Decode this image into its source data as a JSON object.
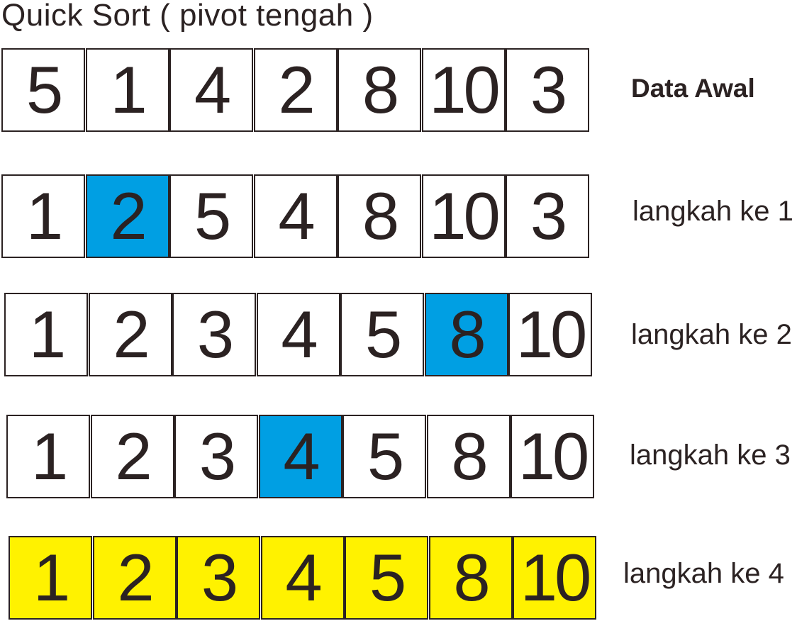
{
  "title": "Quick Sort ( pivot tengah )",
  "colors": {
    "pivot": "#009fe3",
    "sorted": "#fff200",
    "border": "#2b2222"
  },
  "rows": [
    {
      "label": "Data Awal",
      "values": [
        "5",
        "1",
        "4",
        "2",
        "8",
        "10",
        "3"
      ],
      "pivot_index": null,
      "final": false
    },
    {
      "label": "langkah ke 1",
      "values": [
        "1",
        "2",
        "5",
        "4",
        "8",
        "10",
        "3"
      ],
      "pivot_index": 1,
      "final": false
    },
    {
      "label": "langkah ke 2",
      "values": [
        "1",
        "2",
        "3",
        "4",
        "5",
        "8",
        "10"
      ],
      "pivot_index": 5,
      "final": false
    },
    {
      "label": "langkah ke 3",
      "values": [
        "1",
        "2",
        "3",
        "4",
        "5",
        "8",
        "10"
      ],
      "pivot_index": 3,
      "final": false
    },
    {
      "label": "langkah ke 4",
      "values": [
        "1",
        "2",
        "3",
        "4",
        "5",
        "8",
        "10"
      ],
      "pivot_index": null,
      "final": true
    }
  ]
}
